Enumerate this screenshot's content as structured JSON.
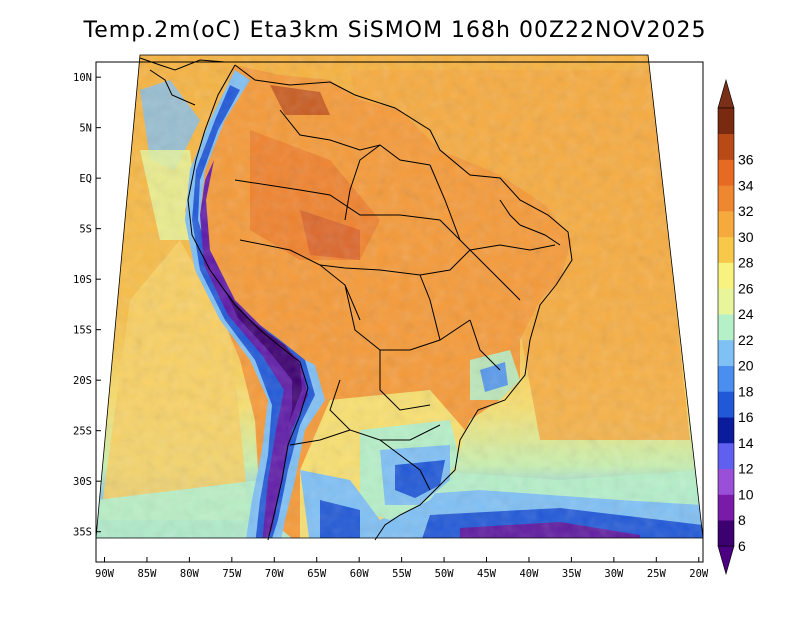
{
  "title": "Temp.2m(oC) Eta3km SiSMOM 168h 00Z22NOV2025",
  "map": {
    "variable": "Temp.2m",
    "units": "oC",
    "model": "Eta3km",
    "lat_labels": [
      "10N",
      "5N",
      "EQ",
      "5S",
      "10S",
      "15S",
      "20S",
      "25S",
      "30S",
      "35S"
    ],
    "lat_values": [
      10,
      5,
      0,
      -5,
      -10,
      -15,
      -20,
      -25,
      -30,
      -35
    ],
    "lon_labels": [
      "90W",
      "85W",
      "80W",
      "75W",
      "70W",
      "65W",
      "60W",
      "55W",
      "50W",
      "45W",
      "40W",
      "35W",
      "30W",
      "25W",
      "20W"
    ],
    "lon_values": [
      -90,
      -85,
      -80,
      -75,
      -70,
      -65,
      -60,
      -55,
      -50,
      -45,
      -40,
      -35,
      -30,
      -25,
      -20
    ],
    "lat_range": [
      -38,
      11.5
    ],
    "lon_range": [
      -91,
      -19.5
    ]
  },
  "colorbar": {
    "labels": [
      "6",
      "8",
      "10",
      "12",
      "14",
      "16",
      "18",
      "20",
      "22",
      "24",
      "26",
      "28",
      "30",
      "32",
      "34",
      "36"
    ],
    "values": [
      6,
      8,
      10,
      12,
      14,
      16,
      18,
      20,
      22,
      24,
      26,
      28,
      30,
      32,
      34,
      36
    ],
    "colors": [
      "#3c0070",
      "#7a1aa8",
      "#9a4fd8",
      "#5f5ff0",
      "#0a1c9c",
      "#2058d8",
      "#4a8ff0",
      "#7fc0f5",
      "#b6f0c8",
      "#e8f59a",
      "#f8f27e",
      "#f7c84a",
      "#f6a93d",
      "#ef8630",
      "#e66a22",
      "#b84a18",
      "#7a2a10"
    ],
    "below_color": "#4a0080",
    "above_color": "#7a3018"
  }
}
